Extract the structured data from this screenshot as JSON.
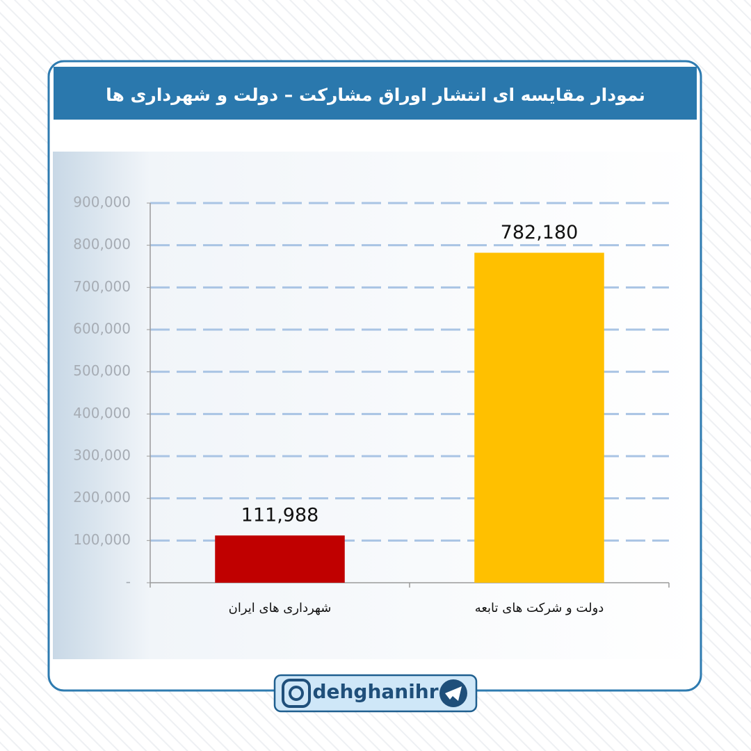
{
  "chart_data": {
    "type": "bar",
    "title": "نمودار مقایسه ای انتشار  اوراق مشارکت – دولت و شهرداری ها",
    "categories": [
      "شهرداری های ایران",
      "دولت و شرکت های تابعه"
    ],
    "values": [
      111988,
      782180
    ],
    "value_labels": [
      "111,988",
      "782,180"
    ],
    "colors": [
      "#c00000",
      "#ffc000"
    ],
    "ylim": [
      0,
      900000
    ],
    "yticks": [
      {
        "value": 0,
        "label": "-"
      },
      {
        "value": 100000,
        "label": "100,000"
      },
      {
        "value": 200000,
        "label": "200,000"
      },
      {
        "value": 300000,
        "label": "300,000"
      },
      {
        "value": 400000,
        "label": "400,000"
      },
      {
        "value": 500000,
        "label": "500,000"
      },
      {
        "value": 600000,
        "label": "600,000"
      },
      {
        "value": 700000,
        "label": "700,000"
      },
      {
        "value": 800000,
        "label": "800,000"
      },
      {
        "value": 900000,
        "label": "900,000"
      }
    ],
    "grid": true
  },
  "footer": {
    "handle": "dehghanihr"
  }
}
